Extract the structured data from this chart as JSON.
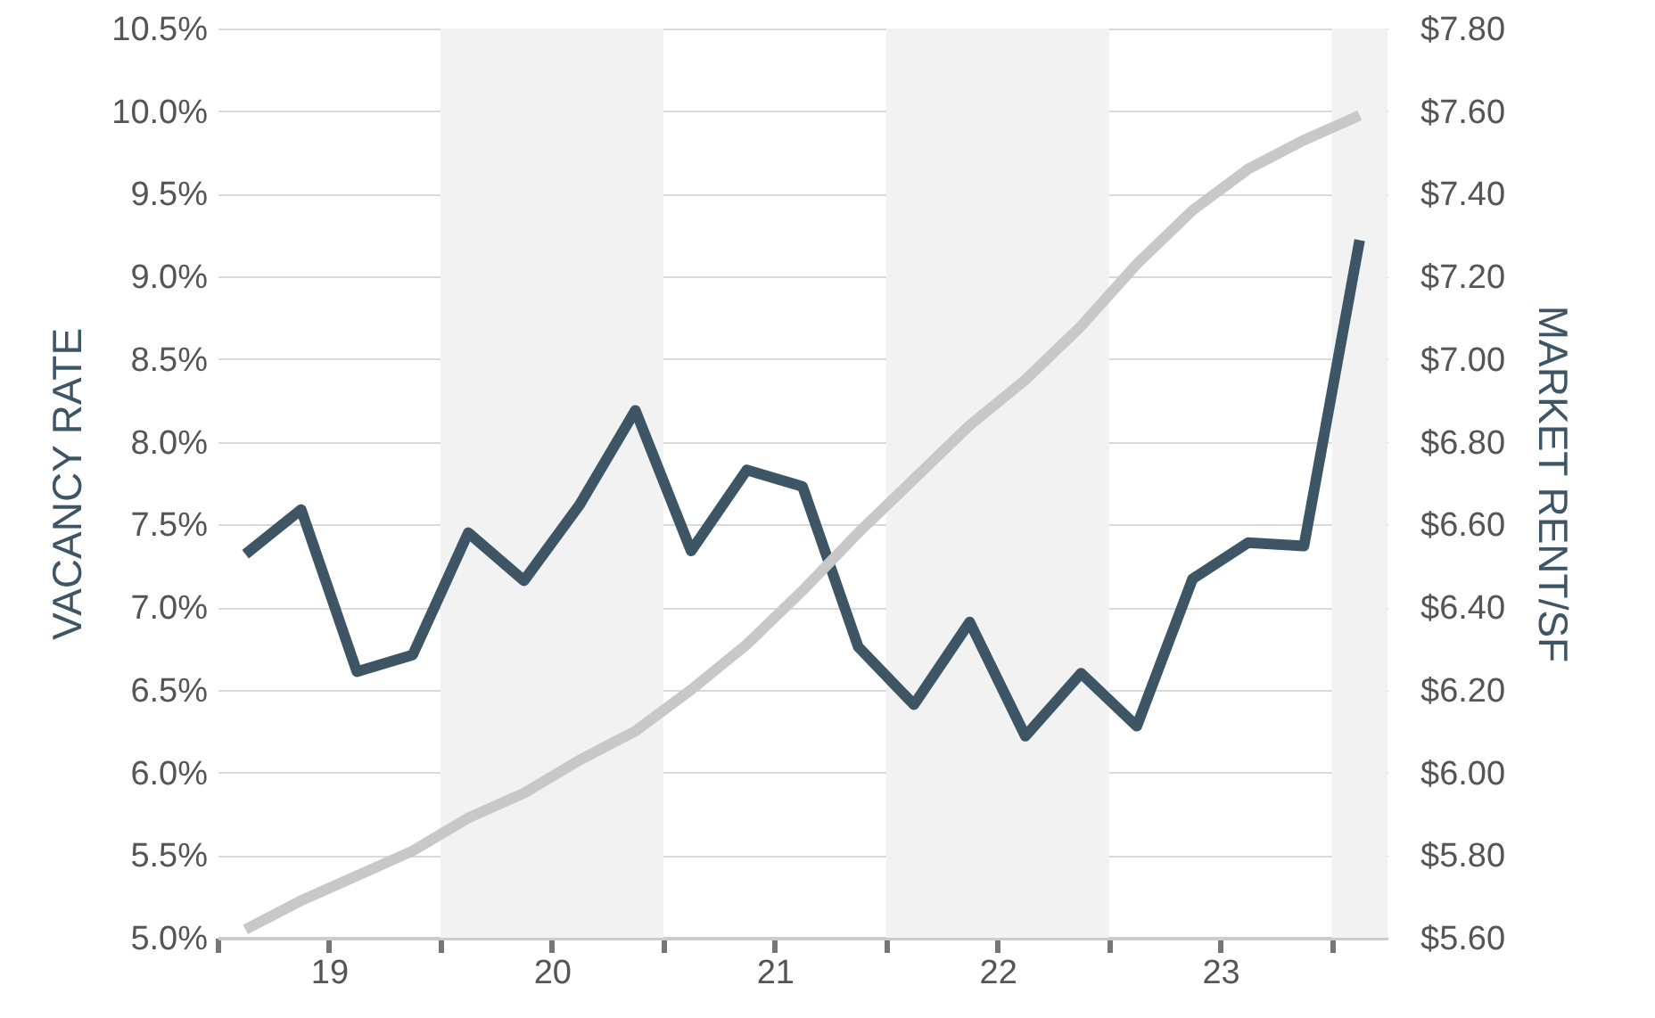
{
  "chart_data": {
    "type": "line",
    "ylabel": "VACANCY RATE",
    "y2label": "MARKET RENT/SF",
    "x": [
      18.625,
      18.875,
      19.125,
      19.375,
      19.625,
      19.875,
      20.125,
      20.375,
      20.625,
      20.875,
      21.125,
      21.375,
      21.625,
      21.875,
      22.125,
      22.375,
      22.625,
      22.875,
      23.125,
      23.375,
      23.625
    ],
    "series": [
      {
        "color": "#3d5564",
        "values": [
          7.32,
          7.59,
          6.61,
          6.71,
          7.45,
          7.16,
          7.62,
          8.19,
          7.34,
          7.83,
          7.73,
          6.76,
          6.41,
          6.91,
          6.22,
          6.6,
          6.28,
          7.17,
          7.39,
          7.37,
          9.22
        ]
      },
      {
        "color": "#c8c8c8",
        "axis": "y2",
        "values": [
          5.62,
          5.69,
          5.75,
          5.81,
          5.89,
          5.95,
          6.03,
          6.1,
          6.2,
          6.31,
          6.44,
          6.58,
          6.71,
          6.84,
          6.95,
          7.08,
          7.23,
          7.36,
          7.46,
          7.53,
          7.59
        ]
      }
    ],
    "xlim": [
      18.5,
      23.75
    ],
    "xticks": [
      {
        "value": 18.5,
        "label": null
      },
      19,
      {
        "value": 19.5,
        "label": null
      },
      20,
      {
        "value": 20.5,
        "label": null
      },
      21,
      {
        "value": 21.5,
        "label": null
      },
      22,
      {
        "value": 22.5,
        "label": null
      },
      23,
      {
        "value": 23.5,
        "label": null
      }
    ],
    "ylim": [
      5,
      10.5
    ],
    "yticks": [
      {
        "value": 5,
        "label": "5.0%"
      },
      {
        "value": 5.5,
        "label": "5.5%"
      },
      {
        "value": 6,
        "label": "6.0%"
      },
      {
        "value": 6.5,
        "label": "6.5%"
      },
      {
        "value": 7,
        "label": "7.0%"
      },
      {
        "value": 7.5,
        "label": "7.5%"
      },
      {
        "value": 8,
        "label": "8.0%"
      },
      {
        "value": 8.5,
        "label": "8.5%"
      },
      {
        "value": 9,
        "label": "9.0%"
      },
      {
        "value": 9.5,
        "label": "9.5%"
      },
      {
        "value": 10,
        "label": "10.0%"
      },
      {
        "value": 10.5,
        "label": "10.5%"
      }
    ],
    "y2lim": [
      5.6,
      7.8
    ],
    "y2ticks": [
      {
        "value": 5.6,
        "label": "$5.60"
      },
      {
        "value": 5.8,
        "label": "$5.80"
      },
      {
        "value": 6,
        "label": "$6.00"
      },
      {
        "value": 6.2,
        "label": "$6.20"
      },
      {
        "value": 6.4,
        "label": "$6.40"
      },
      {
        "value": 6.6,
        "label": "$6.60"
      },
      {
        "value": 6.8,
        "label": "$6.80"
      },
      {
        "value": 7,
        "label": "$7.00"
      },
      {
        "value": 7.2,
        "label": "$7.20"
      },
      {
        "value": 7.4,
        "label": "$7.40"
      },
      {
        "value": 7.6,
        "label": "$7.60"
      },
      {
        "value": 7.8,
        "label": "$7.80"
      }
    ],
    "bands": [
      {
        "axis": "x",
        "from": 19.5,
        "to": 20.5,
        "color": "#f2f2f2"
      },
      {
        "axis": "x",
        "from": 21.5,
        "to": 22.5,
        "color": "#f2f2f2"
      },
      {
        "axis": "x",
        "from": 23.5,
        "to": 23.75,
        "color": "#f2f2f2"
      }
    ],
    "grid": "y",
    "line_style": "solid",
    "marker": "none"
  }
}
